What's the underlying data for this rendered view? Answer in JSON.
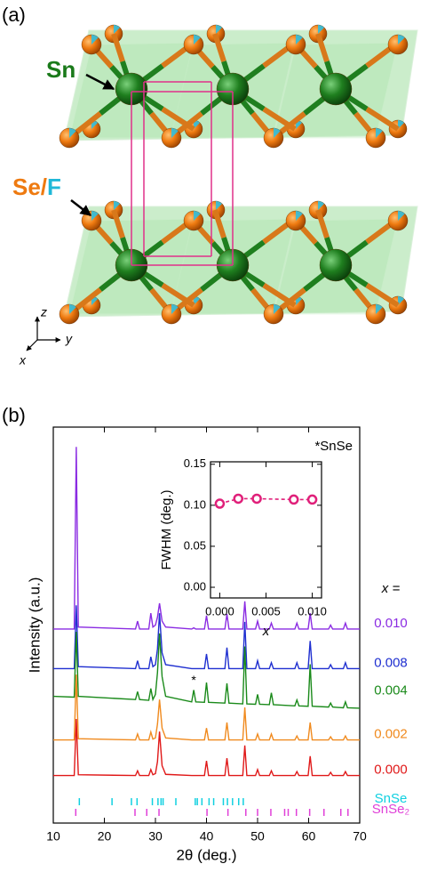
{
  "panel_labels": [
    "(a)",
    "(b)"
  ],
  "panel_a": {
    "sn": "Sn",
    "se": "Se/",
    "f": "F",
    "axes": [
      "z",
      "y",
      "x"
    ]
  },
  "chart_data": [
    {
      "type": "line",
      "xlabel": "2θ (deg.)",
      "ylabel": "Intensity (a.u.)",
      "annotation": "*SnSe",
      "star": {
        "text": "*",
        "x": 37.5
      },
      "legend_title": "x =",
      "xlim": [
        10,
        70
      ],
      "ylim": [
        0,
        100
      ],
      "xticks": [
        10,
        20,
        30,
        40,
        50,
        60,
        70
      ],
      "x": [
        10,
        14.1,
        14.5,
        14.9,
        26.1,
        26.5,
        26.9,
        28.7,
        29.1,
        29.5,
        30.0,
        30.4,
        30.8,
        31.3,
        32.0,
        37.1,
        37.5,
        37.9,
        39.6,
        40.0,
        40.4,
        43.6,
        44.0,
        44.4,
        47.1,
        47.5,
        47.9,
        49.6,
        50.0,
        50.4,
        52.3,
        52.7,
        53.1,
        57.3,
        57.7,
        58.1,
        59.9,
        60.3,
        60.7,
        63.9,
        64.3,
        64.7,
        66.8,
        67.2,
        67.6,
        70
      ],
      "series": [
        {
          "name": "0.010",
          "color": "#8a2be2",
          "values": [
            49,
            49,
            95,
            49.5,
            49,
            51,
            49,
            49,
            53,
            49.5,
            50,
            52,
            55.5,
            51,
            49.5,
            49,
            49.3,
            49,
            49,
            52.4,
            49,
            49,
            52.8,
            49,
            49,
            56,
            49,
            49,
            51,
            49,
            49,
            50.5,
            49,
            49,
            50.5,
            49,
            49,
            53,
            49,
            49,
            50,
            49,
            49,
            50.5,
            49,
            49
          ]
        },
        {
          "name": "0.008",
          "color": "#1f2fd0",
          "values": [
            39,
            39,
            55,
            39.5,
            39,
            41,
            39,
            39,
            42,
            39.5,
            40,
            44,
            53,
            43,
            40,
            39,
            39,
            39,
            39,
            42.7,
            39,
            39,
            44.3,
            39,
            39,
            50.8,
            39,
            39,
            41,
            39,
            39,
            40.5,
            39,
            39,
            40.5,
            39,
            39,
            46,
            39,
            39,
            40,
            39,
            39,
            40.5,
            39,
            39
          ]
        },
        {
          "name": "0.004",
          "color": "#1a8a1a",
          "values": [
            32,
            31.8,
            48.3,
            32,
            31.2,
            33.2,
            31.2,
            31,
            34,
            31.2,
            32.5,
            38,
            47.9,
            37,
            32,
            30.6,
            33.6,
            30.6,
            30.5,
            35.5,
            30.5,
            30.3,
            35.3,
            30.3,
            30.1,
            44.6,
            30.1,
            30,
            32.5,
            30,
            29.9,
            32.9,
            29.9,
            29.6,
            31.1,
            29.6,
            29.5,
            40.1,
            29.5,
            29.3,
            30.3,
            29.3,
            29.1,
            30.6,
            29.1,
            29
          ]
        },
        {
          "name": "0.002",
          "color": "#f08a1e",
          "values": [
            21,
            21,
            37.5,
            21.3,
            21,
            22.5,
            21,
            21,
            23,
            21.2,
            21.5,
            25,
            31.2,
            24,
            21.5,
            21,
            21,
            21,
            21,
            24,
            21,
            21,
            25.4,
            21,
            21,
            29.2,
            21,
            21,
            22.5,
            21,
            21,
            22.5,
            21,
            21,
            22,
            21,
            21,
            25.4,
            21,
            21,
            21.8,
            21,
            21,
            22,
            21,
            21
          ]
        },
        {
          "name": "0.000",
          "color": "#e01818",
          "values": [
            12,
            12,
            26.3,
            12.2,
            12,
            13.2,
            12,
            12,
            13.5,
            12.2,
            12.5,
            15.5,
            23.1,
            14.5,
            12.3,
            12,
            12,
            12,
            12,
            15.7,
            12,
            12,
            16.4,
            12,
            12,
            19.6,
            12,
            12,
            13.5,
            12,
            12,
            13.2,
            12,
            12,
            13,
            12,
            12,
            16.9,
            12,
            12,
            12.8,
            12,
            12,
            13,
            12,
            12
          ]
        }
      ],
      "references": [
        {
          "name": "SnSe",
          "color": "#10d0e0",
          "positions": [
            15.1,
            21.5,
            25.3,
            26.4,
            29.4,
            30.5,
            31.1,
            31.5,
            34.0,
            37.8,
            38.2,
            39.1,
            40.5,
            41.4,
            43.3,
            44.1,
            45.1,
            46.3,
            47.2
          ]
        },
        {
          "name": "SnSe₂",
          "color": "#e040d8",
          "positions": [
            14.4,
            26.0,
            28.3,
            30.7,
            40.1,
            44.2,
            47.7,
            50.0,
            52.6,
            55.3,
            56.0,
            57.6,
            60.2,
            63.0,
            66.3,
            67.7
          ]
        }
      ]
    },
    {
      "type": "line",
      "xlabel": "x",
      "ylabel": "FWHM (deg.)",
      "color": "#e0207a",
      "xlim": [
        -0.001,
        0.011
      ],
      "ylim": [
        -0.013,
        0.153
      ],
      "xticks": [
        {
          "value": 0,
          "label": "0.000"
        },
        {
          "value": 0.005,
          "label": "0.005"
        },
        {
          "value": 0.01,
          "label": "0.010"
        }
      ],
      "yticks": [
        {
          "value": 0,
          "label": "0.00"
        },
        {
          "value": 0.05,
          "label": "0.05"
        },
        {
          "value": 0.1,
          "label": "0.10"
        },
        {
          "value": 0.15,
          "label": "0.15"
        }
      ],
      "x": [
        0,
        0.002,
        0.004,
        0.008,
        0.01
      ],
      "values": [
        0.102,
        0.108,
        0.108,
        0.107,
        0.107
      ]
    }
  ]
}
